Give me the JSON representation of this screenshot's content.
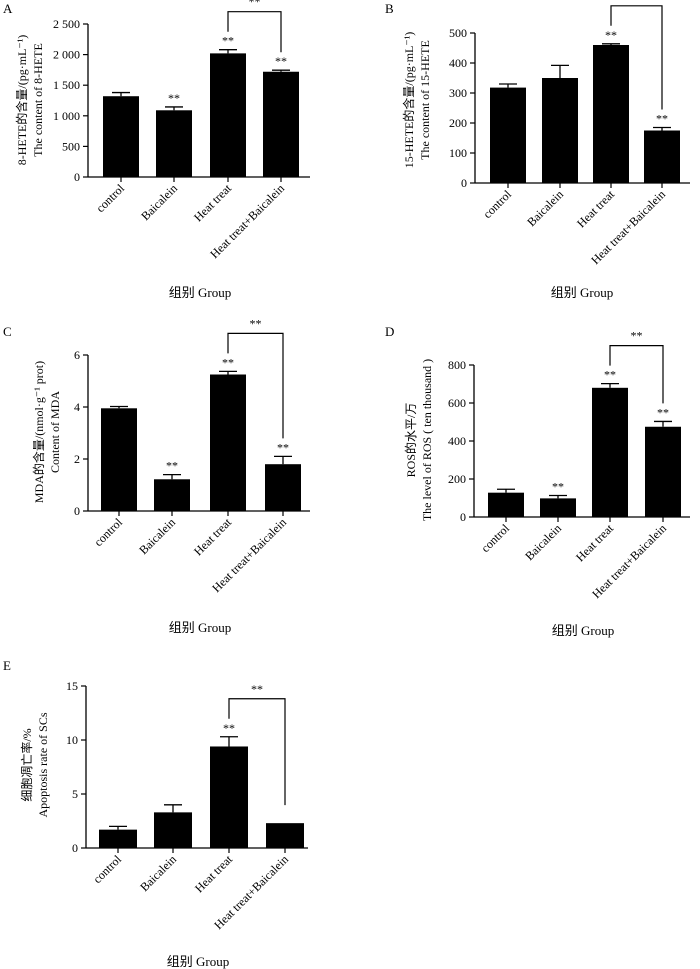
{
  "figure": {
    "panels": [
      {
        "letter": "A",
        "ylabel_cn": "8-HETE的含量/(pg·mL⁻¹)",
        "ylabel_en": "The content of 8-HETE",
        "xlabel": "组别 Group",
        "ticks": [
          "0",
          "500",
          "1 000",
          "1 500",
          "2 000",
          "2 500"
        ],
        "bracket_label": "**"
      },
      {
        "letter": "B",
        "ylabel_cn": "15-HETE的含量/(pg·mL⁻¹)",
        "ylabel_en": "The content of 15-HETE",
        "xlabel": "组别 Group",
        "ticks": [
          "0",
          "100",
          "200",
          "300",
          "400",
          "500"
        ],
        "bracket_label": "**"
      },
      {
        "letter": "C",
        "ylabel_cn": "MDA的含量/(nmol·g⁻¹ prot)",
        "ylabel_en": "Content of MDA",
        "xlabel": "组别 Group",
        "ticks": [
          "0",
          "2",
          "4",
          "6"
        ],
        "bracket_label": "**"
      },
      {
        "letter": "D",
        "ylabel_cn": "ROS的水平/万",
        "ylabel_en": "The level of ROS ( ten thousand )",
        "xlabel": "组别 Group",
        "ticks": [
          "0",
          "200",
          "400",
          "600",
          "800"
        ],
        "bracket_label": "**"
      },
      {
        "letter": "E",
        "ylabel_cn": "细胞凋亡率/%",
        "ylabel_en": "Apoptosis rate of SCs",
        "xlabel": "组别 Group",
        "ticks": [
          "0",
          "5",
          "10",
          "15"
        ],
        "bracket_label": "**"
      }
    ]
  },
  "chart_data": [
    {
      "type": "bar",
      "title": "A",
      "ylabel": "8-HETE的含量/(pg·mL⁻¹) The content of 8-HETE",
      "xlabel": "组别 Group",
      "categories": [
        "control",
        "Baicalein",
        "Heat treat",
        "Heat treat+Baicalein"
      ],
      "values": [
        1320,
        1090,
        2020,
        1720
      ],
      "errors": [
        60,
        55,
        60,
        25
      ],
      "significance": [
        "",
        "**",
        "**",
        "**"
      ],
      "bracket": {
        "from": 2,
        "to": 3,
        "label": "**"
      },
      "ylim": [
        0,
        2500
      ],
      "yticks": [
        0,
        500,
        1000,
        1500,
        2000,
        2500
      ]
    },
    {
      "type": "bar",
      "title": "B",
      "ylabel": "15-HETE的含量/(pg·mL⁻¹) The content of 15-HETE",
      "xlabel": "组别 Group",
      "categories": [
        "control",
        "Baicalein",
        "Heat treat",
        "Heat treat+Baicalein"
      ],
      "values": [
        318,
        350,
        460,
        175
      ],
      "errors": [
        12,
        42,
        4,
        10
      ],
      "significance": [
        "",
        "",
        "**",
        "**"
      ],
      "bracket": {
        "from": 2,
        "to": 3,
        "label": "**"
      },
      "ylim": [
        0,
        500
      ],
      "yticks": [
        0,
        100,
        200,
        300,
        400,
        500
      ]
    },
    {
      "type": "bar",
      "title": "C",
      "ylabel": "MDA的含量/(nmol·g⁻¹ prot) Content of MDA",
      "xlabel": "组别 Group",
      "categories": [
        "control",
        "Baicalein",
        "Heat treat",
        "Heat treat+Baicalein"
      ],
      "values": [
        3.95,
        1.22,
        5.25,
        1.8
      ],
      "errors": [
        0.07,
        0.18,
        0.12,
        0.3
      ],
      "significance": [
        "",
        "**",
        "**",
        "**"
      ],
      "bracket": {
        "from": 2,
        "to": 3,
        "label": "**"
      },
      "ylim": [
        0,
        6
      ],
      "yticks": [
        0,
        2,
        4,
        6
      ]
    },
    {
      "type": "bar",
      "title": "D",
      "ylabel": "ROS的水平/万 The level of ROS ( ten thousand )",
      "xlabel": "组别 Group",
      "categories": [
        "control",
        "Baicalein",
        "Heat treat",
        "Heat treat+Baicalein"
      ],
      "values": [
        128,
        98,
        680,
        475
      ],
      "errors": [
        18,
        15,
        22,
        28
      ],
      "significance": [
        "",
        "**",
        "**",
        "**"
      ],
      "bracket": {
        "from": 2,
        "to": 3,
        "label": "**"
      },
      "ylim": [
        0,
        800
      ],
      "yticks": [
        0,
        200,
        400,
        600,
        800
      ]
    },
    {
      "type": "bar",
      "title": "E",
      "ylabel": "细胞凋亡率/% Apoptosis rate of SCs",
      "xlabel": "组别 Group",
      "categories": [
        "control",
        "Baicalein",
        "Heat treat",
        "Heat treat+Baicalein"
      ],
      "values": [
        1.7,
        3.3,
        9.4,
        2.3
      ],
      "errors": [
        0.3,
        0.7,
        0.9,
        0
      ],
      "significance": [
        "",
        "",
        "**",
        ""
      ],
      "bracket": {
        "from": 2,
        "to": 3,
        "label": "**"
      },
      "ylim": [
        0,
        15
      ],
      "yticks": [
        0,
        5,
        10,
        15
      ]
    }
  ]
}
